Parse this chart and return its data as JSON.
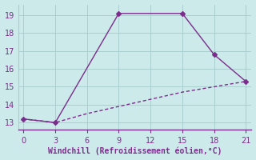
{
  "xlabel": "Windchill (Refroidissement éolien,°C)",
  "line1_x": [
    0,
    3,
    9,
    15,
    18,
    21
  ],
  "line1_y": [
    13.2,
    13.0,
    19.1,
    19.1,
    16.8,
    15.3
  ],
  "line2_x": [
    0,
    3,
    6,
    9,
    12,
    15,
    18,
    21
  ],
  "line2_y": [
    13.2,
    13.0,
    13.5,
    13.9,
    14.3,
    14.7,
    15.0,
    15.3
  ],
  "line_color": "#7b2d8b",
  "bg_color": "#cceaea",
  "grid_color": "#aacece",
  "text_color": "#7b2d8b",
  "spine_color": "#7b2d8b",
  "xlim": [
    -0.5,
    21.5
  ],
  "ylim": [
    12.6,
    19.6
  ],
  "xticks": [
    0,
    3,
    6,
    9,
    12,
    15,
    18,
    21
  ],
  "yticks": [
    13,
    14,
    15,
    16,
    17,
    18,
    19
  ],
  "markersize": 3,
  "linewidth": 1.0
}
